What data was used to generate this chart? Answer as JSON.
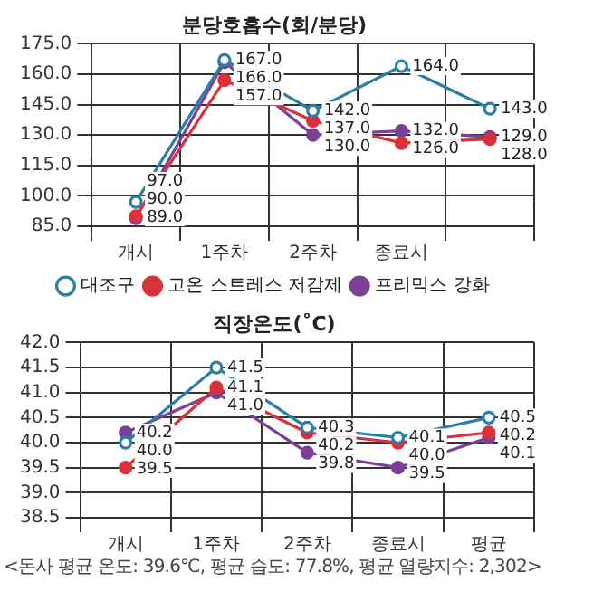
{
  "chart_data": [
    {
      "type": "line",
      "title": "분당호흡수(회/분당)",
      "categories": [
        "개시",
        "1주차",
        "2주차",
        "종료시",
        null
      ],
      "series": [
        {
          "name": "대조구",
          "color": "#2b7fa6",
          "values": [
            97,
            167,
            142,
            164,
            143
          ],
          "value_labels": [
            "97.0",
            "167.0",
            "142.0",
            "164.0",
            "143.0"
          ]
        },
        {
          "name": "고온 스트레스 저감제",
          "color": "#d9303a",
          "values": [
            90,
            157,
            137,
            126,
            128
          ],
          "value_labels": [
            "90.0",
            "157.0",
            "137.0",
            "126.0",
            "128.0"
          ]
        },
        {
          "name": "프리믹스 강화",
          "color": "#7a3f96",
          "values": [
            89,
            166,
            130,
            132,
            129
          ],
          "value_labels": [
            "89.0",
            "166.0",
            "130.0",
            "132.0",
            "129.0"
          ]
        }
      ],
      "ylim": [
        85,
        175
      ],
      "yticks": [
        {
          "value": 85,
          "label": "85.0"
        },
        {
          "value": 100,
          "label": "100.0"
        },
        {
          "value": 115,
          "label": "115.0"
        },
        {
          "value": 130,
          "label": "130.0"
        },
        {
          "value": 145,
          "label": "145.0"
        },
        {
          "value": 160,
          "label": "160.0"
        },
        {
          "value": 175,
          "label": "175.0"
        }
      ],
      "grid": true,
      "legend": "bottom",
      "marker": "circle"
    },
    {
      "type": "line",
      "title": "직장온도(˚C)",
      "categories": [
        "개시",
        "1주차",
        "2주차",
        "종료시",
        "평균"
      ],
      "series": [
        {
          "color": "#2b7fa6",
          "values": [
            40.0,
            41.5,
            40.3,
            40.1,
            40.5
          ],
          "value_labels": [
            "40.0",
            "41.5",
            "40.3",
            "40.1",
            "40.5"
          ]
        },
        {
          "color": "#d9303a",
          "values": [
            39.5,
            41.1,
            40.2,
            40.0,
            40.2
          ],
          "value_labels": [
            "39.5",
            "41.1",
            "40.2",
            "40.0",
            "40.2"
          ]
        },
        {
          "color": "#7a3f96",
          "values": [
            40.2,
            41.0,
            39.8,
            39.5,
            40.1
          ],
          "value_labels": [
            "40.2",
            "41.0",
            "39.8",
            "39.5",
            "40.1"
          ]
        }
      ],
      "ylim": [
        38.5,
        42
      ],
      "yticks": [
        {
          "value": 38.5,
          "label": "38.5"
        },
        {
          "value": 39,
          "label": "39.0"
        },
        {
          "value": 39.5,
          "label": "39.5"
        },
        {
          "value": 40,
          "label": "40.0"
        },
        {
          "value": 40.5,
          "label": "40.5"
        },
        {
          "value": 41,
          "label": "41.0"
        },
        {
          "value": 41.5,
          "label": "41.5"
        },
        {
          "value": 42,
          "label": "42.0"
        }
      ],
      "grid": true,
      "marker": "circle",
      "annotations": [
        "<돈사 평균 온도: 39.6℃, 평균 습도: 77.8%, 평균 열량지수: 2,302>"
      ]
    }
  ]
}
